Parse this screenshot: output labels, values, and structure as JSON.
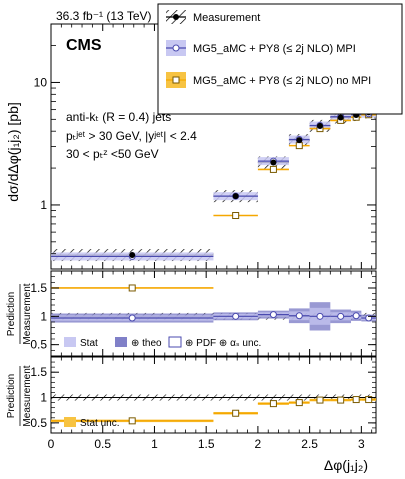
{
  "chart_data": {
    "type": "step-histogram",
    "header_left": "36.3 fb⁻¹ (13 TeV)",
    "experiment": "CMS",
    "annotations": [
      "anti-kₜ (R = 0.4) jets",
      "pₜʲᵉᵗ > 30 GeV, |yʲᵉᵗ| < 2.4",
      "30 <  pₜᶻ <50 GeV"
    ],
    "xlabel": "Δφ(j₁j₂)",
    "ylabel_top": "dσ/dΔφ(j₁j₂) [pb]",
    "ylabel_ratio": [
      "Prediction",
      "Measurement"
    ],
    "x_ticks": [
      "0",
      "0.5",
      "1",
      "1.5",
      "2",
      "2.5",
      "3"
    ],
    "xlim": [
      0,
      3.1416
    ],
    "top_panel": {
      "yscale": "log",
      "ylim": [
        0.3,
        30
      ],
      "y_ticks": [
        "1",
        "10"
      ],
      "legend": [
        {
          "label": "Measurement",
          "style": "hatched"
        },
        {
          "label": "MG5_aMC + PY8 (≤ 2j NLO) MPI",
          "style": "blue-open-circle"
        },
        {
          "label": "MG5_aMC + PY8 (≤ 2j NLO) no MPI",
          "style": "orange-open-square"
        }
      ],
      "bins": [
        0,
        1.57,
        2.0,
        2.3,
        2.5,
        2.7,
        2.9,
        3.0,
        3.1416
      ],
      "series": [
        {
          "name": "Measurement",
          "values": [
            0.39,
            1.18,
            2.22,
            3.38,
            4.42,
            5.18,
            5.42,
            5.7
          ]
        },
        {
          "name": "MG5_aMC + PY8 (≤ 2j NLO) MPI",
          "values": [
            0.38,
            1.18,
            2.28,
            3.42,
            4.45,
            5.25,
            5.5,
            5.55
          ]
        },
        {
          "name": "MG5_aMC + PY8 (≤ 2j NLO) no MPI",
          "values": [
            0.21,
            0.82,
            1.95,
            3.05,
            4.2,
            4.9,
            5.2,
            5.45
          ]
        }
      ]
    },
    "ratio_panel_1": {
      "ylim": [
        0.3,
        1.8
      ],
      "y_ticks": [
        "0.5",
        "1",
        "1.5"
      ],
      "legend": [
        {
          "label": "Stat",
          "style": "light-blue-fill"
        },
        {
          "label": "⊕ theo",
          "style": "blue-fill"
        },
        {
          "label": "⊕ PDF ⊕ αₛ unc.",
          "style": "open-box"
        }
      ],
      "values": [
        0.97,
        1.0,
        1.03,
        1.01,
        1.0,
        1.0,
        1.01,
        0.97
      ],
      "band_half_width": [
        0.08,
        0.07,
        0.07,
        0.13,
        0.25,
        0.12,
        0.09,
        0.06
      ]
    },
    "ratio_panel_2": {
      "ylim": [
        0.3,
        1.8
      ],
      "y_ticks": [
        "0.5",
        "1",
        "1.5"
      ],
      "legend": [
        {
          "label": "Stat unc.",
          "style": "orange-fill"
        }
      ],
      "values": [
        0.54,
        0.69,
        0.88,
        0.9,
        0.95,
        0.95,
        0.96,
        0.96
      ]
    },
    "colors": {
      "mpi": "#4a4aaf",
      "mpi_fill": "#9d9de0",
      "mpi_light": "#c8c8f2",
      "nompi": "#f5a700",
      "nompi_fill": "#f7c342",
      "data": "#000000"
    }
  }
}
